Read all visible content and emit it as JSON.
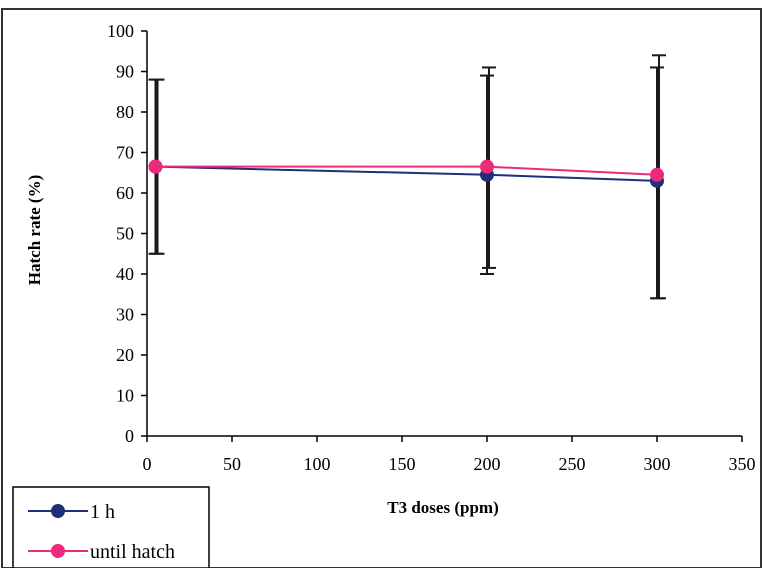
{
  "chart_data": {
    "type": "line",
    "title": "",
    "xlabel": "T3 doses (ppm)",
    "ylabel": "Hatch rate (%)",
    "xlim": [
      0,
      350
    ],
    "ylim": [
      0,
      100
    ],
    "xticks": [
      0,
      50,
      100,
      150,
      200,
      250,
      300,
      350
    ],
    "yticks": [
      0,
      10,
      20,
      30,
      40,
      50,
      60,
      70,
      80,
      90,
      100
    ],
    "grid": false,
    "legend_position": "bottom-left",
    "x": [
      5,
      200,
      300
    ],
    "series": [
      {
        "name": "1 h",
        "color": "#1f2f7a",
        "values": [
          66.5,
          64.5,
          63
        ],
        "error_low": [
          45,
          40,
          34
        ],
        "error_high": [
          88,
          89,
          91
        ]
      },
      {
        "name": "until hatch",
        "color": "#ee2a7b",
        "values": [
          66.5,
          66.5,
          64.5
        ],
        "error_low": [
          45,
          41.5,
          34
        ],
        "error_high": [
          88,
          91,
          94
        ]
      }
    ]
  }
}
